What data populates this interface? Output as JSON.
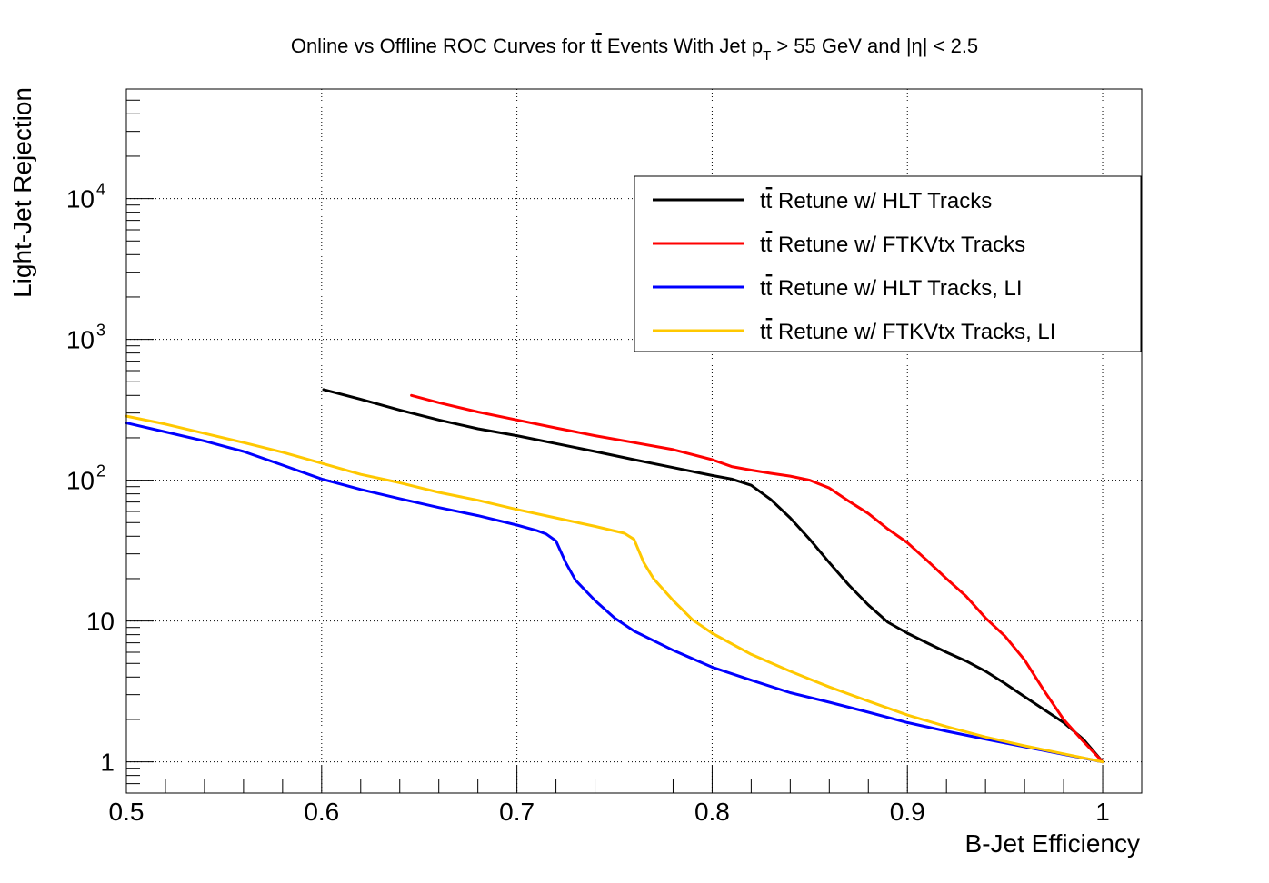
{
  "chart_data": {
    "type": "line",
    "title": "Online vs Offline ROC Curves for tt̄ Events With Jet p_T > 55 GeV and |η| < 2.5",
    "title_parts": {
      "pre": "Online vs Offline ROC Curves for t",
      "tbar": "t",
      "mid": " Events With Jet p",
      "sub": "T",
      "post": " > 55 GeV and |η| < 2.5"
    },
    "xlabel": "B-Jet Efficiency",
    "ylabel": "Light-Jet Rejection",
    "xlim": [
      0.5,
      1.02
    ],
    "ylim": [
      0.6,
      60000
    ],
    "y_scale": "log",
    "grid": true,
    "legend_position": "top-right",
    "x_ticks": [
      {
        "value": 0.5,
        "label": "0.5"
      },
      {
        "value": 0.6,
        "label": "0.6"
      },
      {
        "value": 0.7,
        "label": "0.7"
      },
      {
        "value": 0.8,
        "label": "0.8"
      },
      {
        "value": 0.9,
        "label": "0.9"
      },
      {
        "value": 1.0,
        "label": "1"
      }
    ],
    "y_ticks": [
      {
        "value": 1,
        "label": "1",
        "exp": ""
      },
      {
        "value": 10,
        "label": "10",
        "exp": ""
      },
      {
        "value": 100,
        "label": "10",
        "exp": "2"
      },
      {
        "value": 1000,
        "label": "10",
        "exp": "3"
      },
      {
        "value": 10000,
        "label": "10",
        "exp": "4"
      }
    ],
    "series": [
      {
        "name": "tt̄ Retune w/ HLT Tracks",
        "legend_pre": "t",
        "legend_tbar": "t",
        "legend_post": " Retune w/ HLT Tracks",
        "color": "#000000",
        "x": [
          0.601,
          0.62,
          0.64,
          0.66,
          0.68,
          0.7,
          0.72,
          0.74,
          0.76,
          0.78,
          0.8,
          0.81,
          0.82,
          0.83,
          0.84,
          0.85,
          0.86,
          0.87,
          0.88,
          0.89,
          0.9,
          0.91,
          0.92,
          0.93,
          0.94,
          0.95,
          0.96,
          0.97,
          0.98,
          0.99,
          1.0
        ],
        "y": [
          440,
          375,
          315,
          268,
          232,
          207,
          182,
          160,
          140,
          123,
          108,
          102,
          92,
          73,
          54,
          38,
          26,
          18,
          13,
          9.8,
          8.2,
          7.0,
          6.0,
          5.2,
          4.4,
          3.6,
          2.9,
          2.35,
          1.9,
          1.45,
          1.0
        ]
      },
      {
        "name": "tt̄ Retune w/ FTKVtx Tracks",
        "legend_pre": "t",
        "legend_tbar": "t",
        "legend_post": " Retune w/ FTKVtx Tracks",
        "color": "#ff0000",
        "x": [
          0.646,
          0.66,
          0.68,
          0.7,
          0.72,
          0.74,
          0.76,
          0.78,
          0.8,
          0.81,
          0.82,
          0.83,
          0.84,
          0.85,
          0.86,
          0.87,
          0.88,
          0.89,
          0.9,
          0.91,
          0.92,
          0.93,
          0.94,
          0.95,
          0.96,
          0.97,
          0.98,
          0.99,
          1.0
        ],
        "y": [
          400,
          355,
          305,
          268,
          235,
          207,
          185,
          165,
          140,
          125,
          118,
          112,
          107,
          100,
          88,
          71,
          58,
          45,
          36,
          27,
          20,
          15,
          10.5,
          7.8,
          5.3,
          3.2,
          2.0,
          1.4,
          1.0
        ]
      },
      {
        "name": "tt̄ Retune w/ HLT Tracks, LI",
        "legend_pre": "t",
        "legend_tbar": "t",
        "legend_post": " Retune w/ HLT Tracks, LI",
        "color": "#0000ff",
        "x": [
          0.5,
          0.52,
          0.54,
          0.56,
          0.58,
          0.6,
          0.62,
          0.64,
          0.66,
          0.68,
          0.7,
          0.71,
          0.715,
          0.72,
          0.725,
          0.73,
          0.74,
          0.75,
          0.76,
          0.78,
          0.8,
          0.82,
          0.84,
          0.86,
          0.88,
          0.9,
          0.92,
          0.94,
          0.96,
          0.98,
          1.0
        ],
        "y": [
          255,
          220,
          190,
          160,
          128,
          102,
          86,
          74,
          64,
          56,
          48,
          44,
          41.5,
          37,
          26,
          19.5,
          14,
          10.5,
          8.5,
          6.2,
          4.7,
          3.8,
          3.1,
          2.65,
          2.25,
          1.9,
          1.65,
          1.45,
          1.28,
          1.13,
          1.0
        ]
      },
      {
        "name": "tt̄ Retune w/ FTKVtx Tracks, LI",
        "legend_pre": "t",
        "legend_tbar": "t",
        "legend_post": " Retune w/ FTKVtx Tracks, LI",
        "color": "#ffc800",
        "x": [
          0.5,
          0.52,
          0.54,
          0.56,
          0.58,
          0.6,
          0.62,
          0.64,
          0.66,
          0.68,
          0.7,
          0.72,
          0.74,
          0.755,
          0.76,
          0.765,
          0.77,
          0.78,
          0.79,
          0.8,
          0.82,
          0.84,
          0.86,
          0.88,
          0.9,
          0.92,
          0.94,
          0.96,
          0.98,
          1.0
        ],
        "y": [
          285,
          250,
          215,
          185,
          158,
          132,
          110,
          96,
          82,
          72,
          62,
          54,
          47,
          42,
          38,
          26,
          20,
          14,
          10.2,
          8.2,
          5.8,
          4.4,
          3.4,
          2.7,
          2.15,
          1.78,
          1.5,
          1.3,
          1.14,
          1.0
        ]
      }
    ]
  }
}
